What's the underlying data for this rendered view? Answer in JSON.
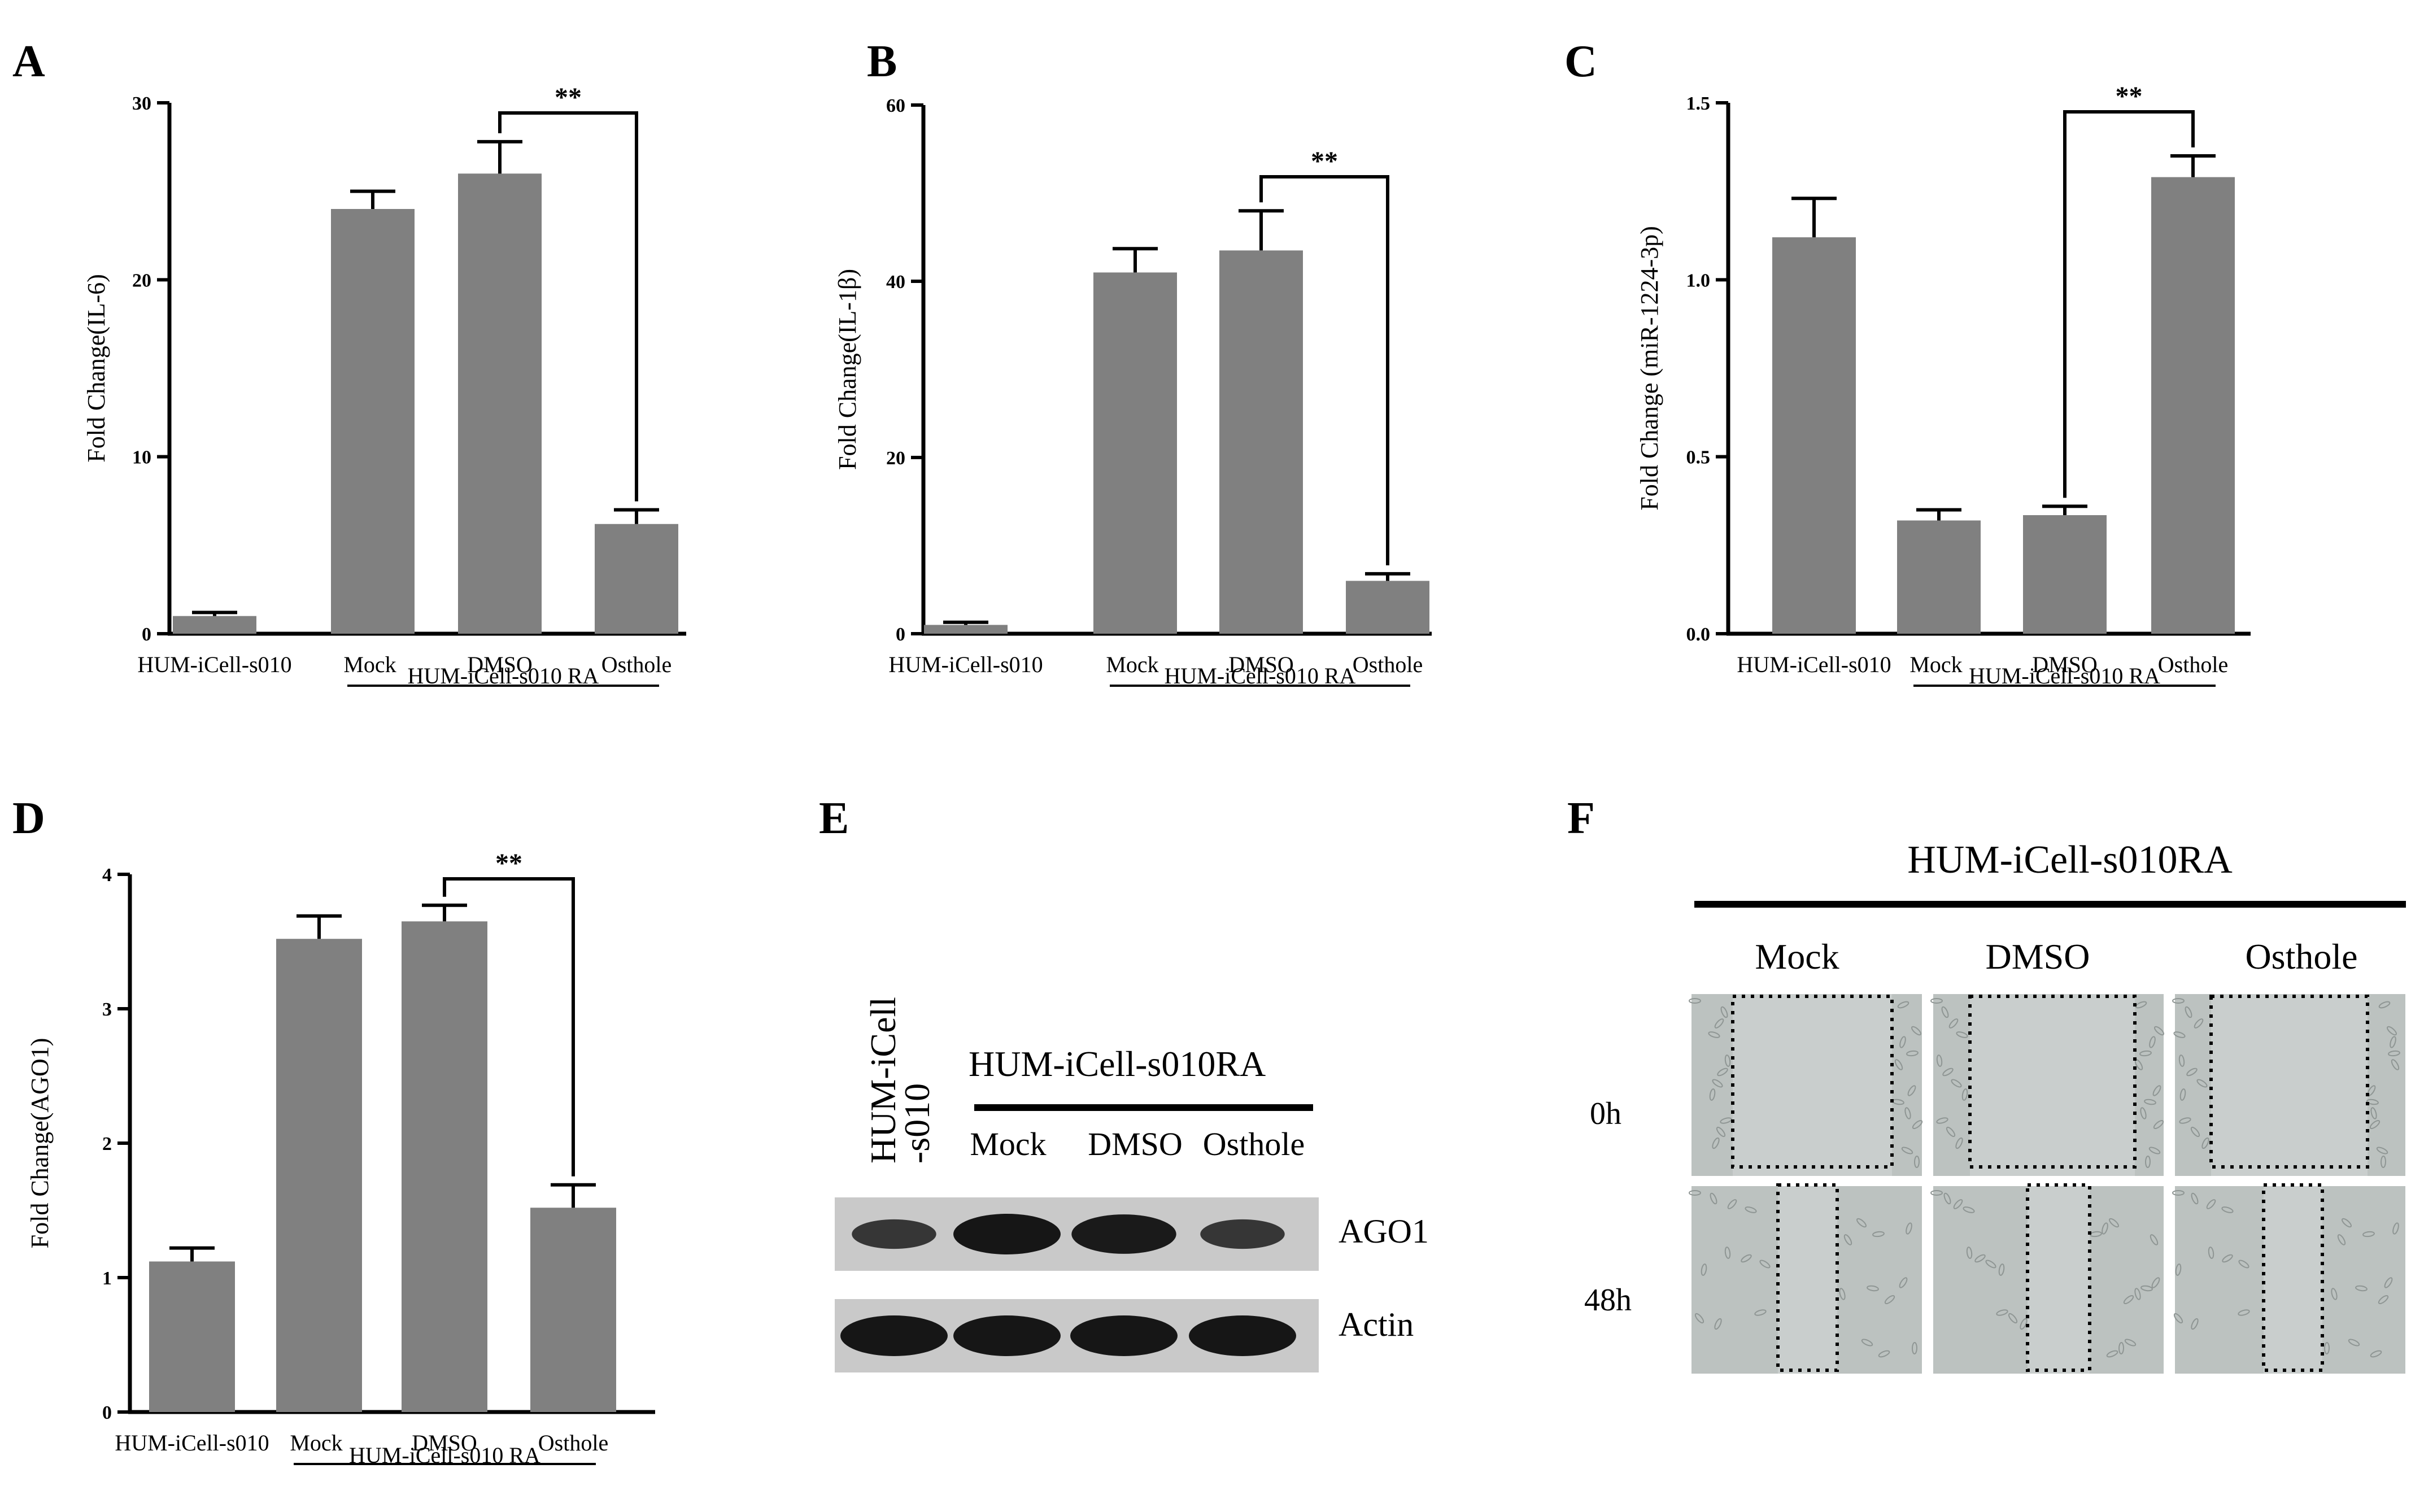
{
  "panels": {
    "A": "A",
    "B": "B",
    "C": "C",
    "D": "D",
    "E": "E",
    "F": "F"
  },
  "colors": {
    "bar": "#808080",
    "blot_bg": "#c9c9c9",
    "band": "#161616",
    "scratch_bg": "#bcc2c0",
    "scratch_gap": "#c9cecd"
  },
  "chart_data": [
    {
      "panel": "A",
      "type": "bar",
      "categories": [
        "HUM-iCell-s010",
        "Mock",
        "DMSO",
        "Osthole"
      ],
      "values": [
        1.0,
        24.0,
        26.0,
        6.2
      ],
      "errors": [
        0.2,
        1.0,
        1.8,
        0.8
      ],
      "ylabel": "Fold Change(IL-6)",
      "ylim": [
        0,
        30
      ],
      "yticks": [
        0,
        10,
        20,
        30
      ],
      "group_label": "HUM-iCell-s010 RA",
      "significance": {
        "label": "**",
        "from": 2,
        "to": 3
      }
    },
    {
      "panel": "B",
      "type": "bar",
      "categories": [
        "HUM-iCell-s010",
        "Mock",
        "DMSO",
        "Osthole"
      ],
      "values": [
        1.0,
        41.0,
        43.5,
        6.0
      ],
      "errors": [
        0.3,
        2.7,
        4.5,
        0.8
      ],
      "ylabel": "Fold Change(IL-1β)",
      "ylim": [
        0,
        60
      ],
      "yticks": [
        0,
        20,
        40,
        60
      ],
      "group_label": "HUM-iCell-s010 RA",
      "significance": {
        "label": "**",
        "from": 2,
        "to": 3
      }
    },
    {
      "panel": "C",
      "type": "bar",
      "categories": [
        "HUM-iCell-s010",
        "Mock",
        "DMSO",
        "Osthole"
      ],
      "values": [
        1.12,
        0.32,
        0.335,
        1.29
      ],
      "errors": [
        0.11,
        0.03,
        0.025,
        0.06
      ],
      "ylabel": "Fold Change (miR-1224-3p)",
      "ylim": [
        0,
        1.5
      ],
      "yticks": [
        "0.0",
        "0.5",
        "1.0",
        "1.5"
      ],
      "group_label": "HUM-iCell-s010 RA",
      "significance": {
        "label": "**",
        "from": 2,
        "to": 3
      }
    },
    {
      "panel": "D",
      "type": "bar",
      "categories": [
        "HUM-iCell-s010",
        "Mock",
        "DMSO",
        "Osthole"
      ],
      "values": [
        1.12,
        3.52,
        3.65,
        1.52
      ],
      "errors": [
        0.1,
        0.17,
        0.12,
        0.17
      ],
      "ylabel": "Fold Change(AGO1)",
      "ylim": [
        0,
        4
      ],
      "yticks": [
        0,
        1,
        2,
        3,
        4
      ],
      "group_label": "HUM-iCell-s010 RA",
      "significance": {
        "label": "**",
        "from": 2,
        "to": 3
      }
    }
  ],
  "western": {
    "col1_label_line1": "HUM-iCell",
    "col1_label_line2": "-s010",
    "group_label": "HUM-iCell-s010RA",
    "lanes": [
      "Mock",
      "DMSO",
      "Osthole"
    ],
    "rows": [
      {
        "label": "AGO1",
        "intensity": [
          0.55,
          1.0,
          0.95,
          0.55
        ]
      },
      {
        "label": "Actin",
        "intensity": [
          1.0,
          1.0,
          1.0,
          1.0
        ]
      }
    ]
  },
  "scratch": {
    "group_label": "HUM-iCell-s010RA",
    "columns": [
      "Mock",
      "DMSO",
      "Osthole"
    ],
    "rows": [
      "0h",
      "48h"
    ]
  }
}
